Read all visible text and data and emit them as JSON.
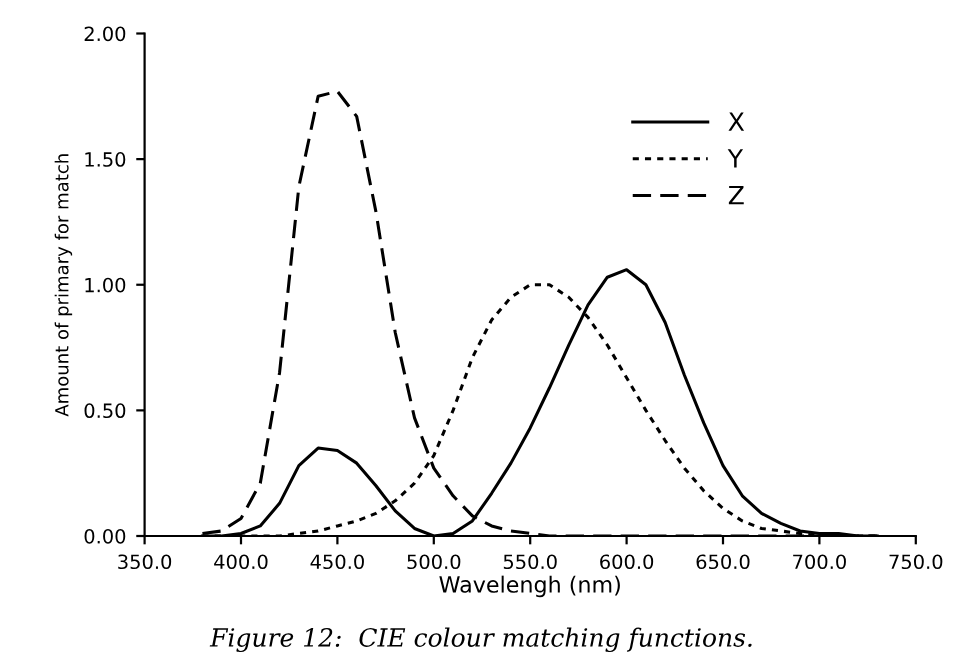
{
  "chart_data": {
    "type": "line",
    "xlabel": "Wavelengh (nm)",
    "ylabel": "Amount of primary for match",
    "x": [
      380,
      390,
      400,
      410,
      420,
      430,
      440,
      450,
      460,
      470,
      480,
      490,
      500,
      510,
      520,
      530,
      540,
      550,
      560,
      570,
      580,
      590,
      600,
      610,
      620,
      630,
      640,
      650,
      660,
      670,
      680,
      690,
      700,
      710,
      720,
      730
    ],
    "series": [
      {
        "name": "X",
        "color": "#000000",
        "line_style": "solid",
        "values": [
          0.0,
          0.0,
          0.01,
          0.04,
          0.13,
          0.28,
          0.35,
          0.34,
          0.29,
          0.2,
          0.1,
          0.03,
          0.0,
          0.01,
          0.06,
          0.17,
          0.29,
          0.43,
          0.59,
          0.76,
          0.92,
          1.03,
          1.06,
          1.0,
          0.85,
          0.64,
          0.45,
          0.28,
          0.16,
          0.09,
          0.05,
          0.02,
          0.01,
          0.01,
          0.0,
          0.0
        ]
      },
      {
        "name": "Y",
        "color": "#000000",
        "line_style": "dotted",
        "values": [
          0.0,
          0.0,
          0.0,
          0.0,
          0.0,
          0.01,
          0.02,
          0.04,
          0.06,
          0.09,
          0.14,
          0.21,
          0.32,
          0.5,
          0.71,
          0.86,
          0.95,
          1.0,
          1.0,
          0.95,
          0.87,
          0.76,
          0.63,
          0.5,
          0.38,
          0.27,
          0.18,
          0.11,
          0.06,
          0.03,
          0.02,
          0.01,
          0.0,
          0.0,
          0.0,
          0.0
        ]
      },
      {
        "name": "Z",
        "color": "#000000",
        "line_style": "dashed",
        "values": [
          0.01,
          0.02,
          0.07,
          0.21,
          0.65,
          1.39,
          1.75,
          1.77,
          1.67,
          1.29,
          0.81,
          0.47,
          0.27,
          0.16,
          0.08,
          0.04,
          0.02,
          0.01,
          0.0,
          0.0,
          0.0,
          0.0,
          0.0,
          0.0,
          0.0,
          0.0,
          0.0,
          0.0,
          0.0,
          0.0,
          0.0,
          0.0,
          0.0,
          0.0,
          0.0,
          0.0
        ]
      }
    ],
    "xlim": [
      350,
      750
    ],
    "ylim": [
      0,
      2
    ],
    "xticks": [
      {
        "value": 350,
        "label": "350.0"
      },
      {
        "value": 400,
        "label": "400.0"
      },
      {
        "value": 450,
        "label": "450.0"
      },
      {
        "value": 500,
        "label": "500.0"
      },
      {
        "value": 550,
        "label": "550.0"
      },
      {
        "value": 600,
        "label": "600.0"
      },
      {
        "value": 650,
        "label": "650.0"
      },
      {
        "value": 700,
        "label": "700.0"
      },
      {
        "value": 750,
        "label": "750.0"
      }
    ],
    "yticks": [
      {
        "value": 0,
        "label": "0.00"
      },
      {
        "value": 0.5,
        "label": "0.50"
      },
      {
        "value": 1,
        "label": "1.00"
      },
      {
        "value": 1.5,
        "label": "1.50"
      },
      {
        "value": 2,
        "label": "2.00"
      }
    ],
    "grid": false,
    "legend": "top right",
    "marker": "none",
    "annotations": [
      "Figure 12:  CIE colour matching functions."
    ]
  }
}
